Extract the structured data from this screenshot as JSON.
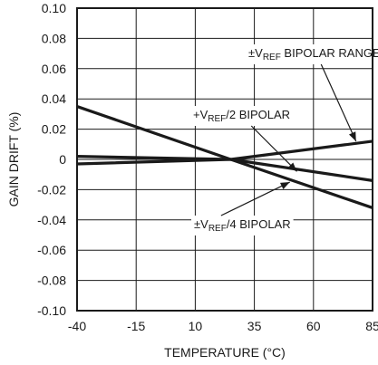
{
  "chart_data": {
    "type": "line",
    "xlabel": "TEMPERATURE (°C)",
    "ylabel": "GAIN DRIFT (%)",
    "xlim": [
      -40,
      85
    ],
    "ylim": [
      -0.1,
      0.1
    ],
    "x_ticks": [
      "-40",
      "-15",
      "10",
      "35",
      "60",
      "85"
    ],
    "y_ticks": [
      "0.10",
      "0.08",
      "0.06",
      "0.04",
      "0.02",
      "0",
      "-0.02",
      "-0.04",
      "-0.06",
      "-0.08",
      "-0.10"
    ],
    "grid": true,
    "series": [
      {
        "name": "±VREF BIPOLAR RANGE",
        "color": "#1a1a1a",
        "x": [
          -40,
          25,
          85
        ],
        "y": [
          -0.003,
          0,
          0.012
        ]
      },
      {
        "name": "+VREF/2 BIPOLAR",
        "color": "#1a1a1a",
        "x": [
          -40,
          25,
          85
        ],
        "y": [
          0.002,
          0,
          -0.014
        ]
      },
      {
        "name": "±VREF/4 BIPOLAR",
        "color": "#1a1a1a",
        "x": [
          -40,
          25,
          85
        ],
        "y": [
          0.035,
          0,
          -0.032
        ]
      }
    ],
    "annotations": [
      {
        "parts": [
          "±V",
          "REF",
          " BIPOLAR RANGE"
        ],
        "series": 0,
        "target": [
          78,
          0.012
        ]
      },
      {
        "parts": [
          "+V",
          "REF",
          "/2 BIPOLAR"
        ],
        "series": 1,
        "target": [
          53,
          -0.008
        ]
      },
      {
        "parts": [
          "±V",
          "REF",
          "/4 BIPOLAR"
        ],
        "series": 2,
        "target": [
          50,
          -0.015
        ]
      }
    ]
  }
}
